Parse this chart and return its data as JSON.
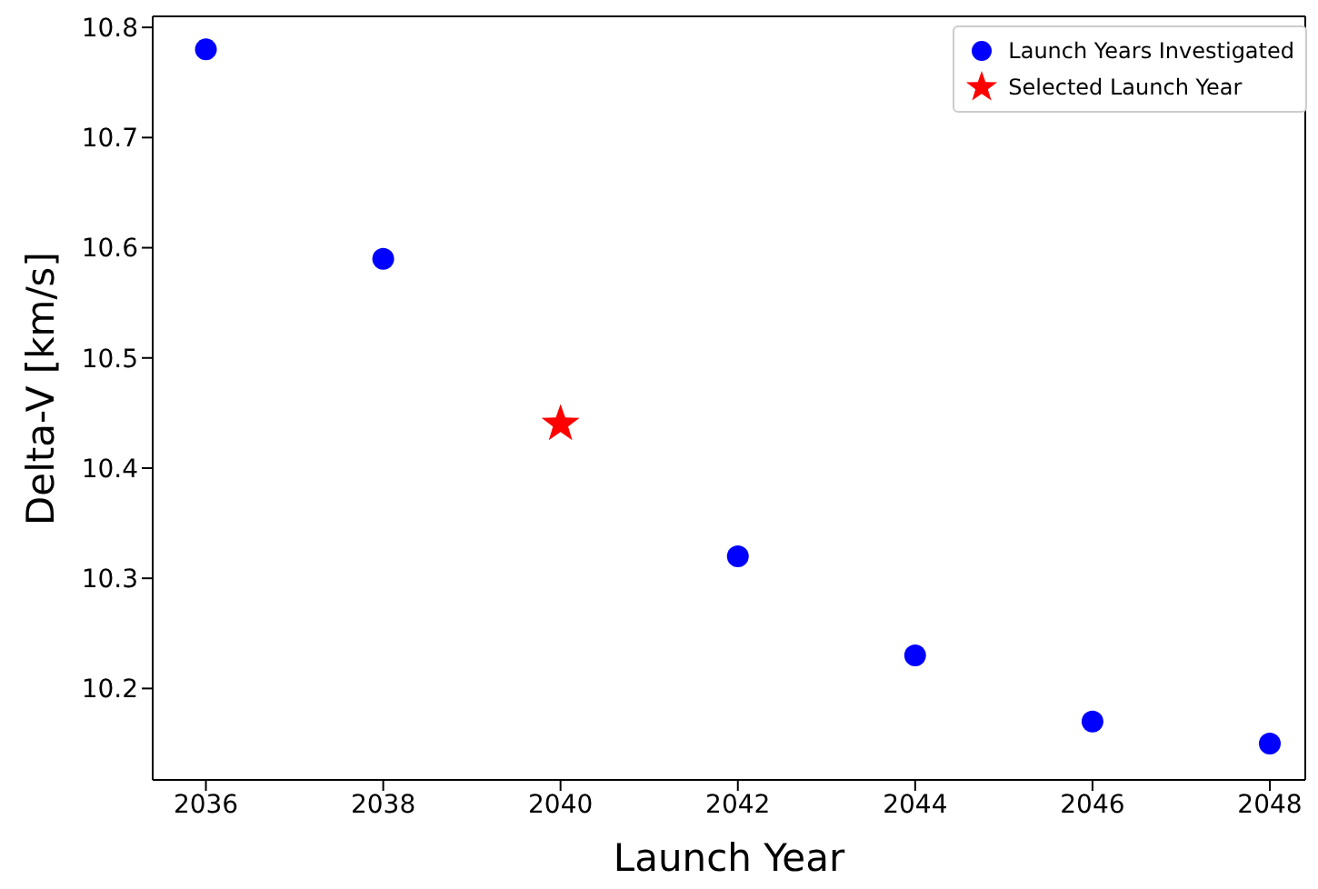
{
  "chart_data": {
    "type": "scatter",
    "xlabel": "Launch Year",
    "ylabel": "Delta-V [km/s]",
    "series": [
      {
        "name": "Launch Years Investigated",
        "color": "#0000ff",
        "marker": "circle",
        "x": [
          2036,
          2038,
          2042,
          2044,
          2046,
          2048
        ],
        "values": [
          10.78,
          10.59,
          10.32,
          10.23,
          10.17,
          10.15
        ]
      },
      {
        "name": "Selected Launch Year",
        "color": "#ff0000",
        "marker": "star",
        "x": [
          2040
        ],
        "values": [
          10.44
        ]
      }
    ],
    "xlim": [
      2035.4,
      2048.4
    ],
    "xticks": [
      2036,
      2038,
      2040,
      2042,
      2044,
      2046,
      2048
    ],
    "ylim": [
      10.117,
      10.81
    ],
    "yticks": [
      10.2,
      10.3,
      10.4,
      10.5,
      10.6,
      10.7,
      10.8
    ],
    "grid": false,
    "legend": "top right"
  }
}
